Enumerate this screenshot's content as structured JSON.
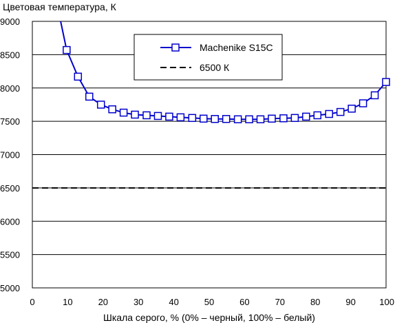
{
  "chart_data": {
    "type": "line",
    "title": "",
    "ylabel": "Цветовая температура, К",
    "xlabel": "Шкала серого, % (0% – черный, 100% – белый)",
    "xlim": [
      0,
      100
    ],
    "ylim": [
      5000,
      9000
    ],
    "xticks": [
      "0",
      "10",
      "20",
      "30",
      "40",
      "50",
      "60",
      "70",
      "80",
      "90",
      "100"
    ],
    "yticks": [
      "5000",
      "5500",
      "6000",
      "6500",
      "7000",
      "7500",
      "8000",
      "8500",
      "9000"
    ],
    "grid": "horizontal",
    "legend_position": "top-center",
    "series": [
      {
        "name": "Machenike S15C",
        "color": "#0000cc",
        "marker": "open-square",
        "x": [
          9.7,
          12.9,
          16.1,
          19.4,
          22.6,
          25.8,
          29.0,
          32.3,
          35.5,
          38.7,
          41.9,
          45.2,
          48.4,
          51.6,
          54.8,
          58.1,
          61.3,
          64.5,
          67.7,
          71.0,
          74.2,
          77.4,
          80.6,
          83.9,
          87.1,
          90.3,
          93.5,
          96.8,
          100
        ],
        "y": [
          8570,
          8170,
          7870,
          7750,
          7680,
          7630,
          7600,
          7590,
          7580,
          7570,
          7560,
          7550,
          7540,
          7535,
          7535,
          7530,
          7530,
          7530,
          7540,
          7545,
          7550,
          7570,
          7590,
          7610,
          7640,
          7690,
          7770,
          7890,
          8090
        ],
        "offscreen_start": {
          "x": 8.0,
          "y": 9000
        }
      },
      {
        "name": "6500 К",
        "color": "#000000",
        "style": "dashed",
        "y": 6500
      }
    ]
  }
}
